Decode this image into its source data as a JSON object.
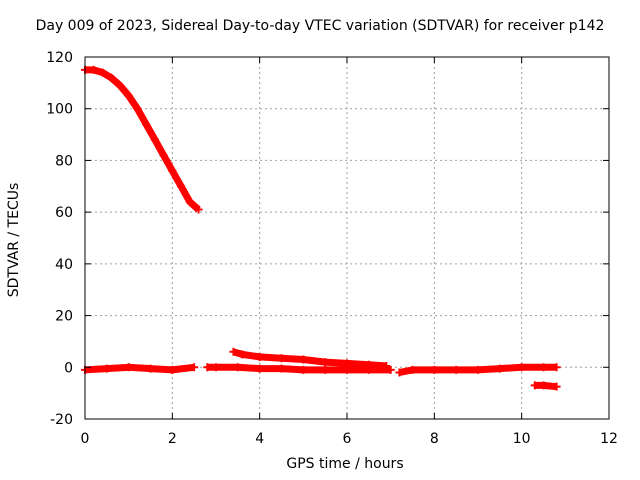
{
  "chart_data": {
    "type": "scatter",
    "title": "Day 009 of 2023, Sidereal Day-to-day VTEC variation (SDTVAR) for receiver p142",
    "xlabel": "GPS time / hours",
    "ylabel": "SDTVAR / TECUs",
    "xlim": [
      0,
      12
    ],
    "ylim": [
      -20,
      120
    ],
    "xticks": [
      0,
      2,
      4,
      6,
      8,
      10,
      12
    ],
    "yticks": [
      -20,
      0,
      20,
      40,
      60,
      80,
      100,
      120
    ],
    "xtick_labels": [
      "0",
      "2",
      "4",
      "6",
      "8",
      "10",
      "12"
    ],
    "ytick_labels": [
      "-20",
      "0",
      "20",
      "40",
      "60",
      "80",
      "100",
      "120"
    ],
    "grid": true,
    "marker_color": "#ff0000",
    "series": [
      {
        "name": "segment-1",
        "x": [
          0.0,
          0.2,
          0.4,
          0.6,
          0.8,
          1.0,
          1.2,
          1.4,
          1.6,
          1.8,
          2.0,
          2.2,
          2.4,
          2.6
        ],
        "y": [
          115,
          115,
          114,
          112,
          109,
          105,
          100,
          94,
          88,
          82,
          76,
          70,
          64,
          61
        ]
      },
      {
        "name": "segment-2",
        "x": [
          0.0,
          0.5,
          1.0,
          1.5,
          2.0,
          2.5
        ],
        "y": [
          -1,
          -0.5,
          0,
          -0.5,
          -1,
          0
        ]
      },
      {
        "name": "segment-3",
        "x": [
          2.8,
          3.0,
          3.5,
          4.0,
          4.5,
          5.0,
          5.5,
          6.0,
          6.5,
          7.0
        ],
        "y": [
          0,
          0,
          0,
          -0.5,
          -0.5,
          -1,
          -1,
          -1,
          -1,
          -1
        ]
      },
      {
        "name": "segment-4",
        "x": [
          3.4,
          3.6,
          4.0,
          4.5,
          5.0,
          5.5,
          6.0,
          6.5,
          6.9
        ],
        "y": [
          6,
          5,
          4,
          3.5,
          3,
          2,
          1.5,
          1,
          0.5
        ]
      },
      {
        "name": "segment-5",
        "x": [
          7.2,
          7.5,
          8.0,
          8.5,
          9.0,
          9.5,
          10.0,
          10.5,
          10.8
        ],
        "y": [
          -2,
          -1,
          -1,
          -1,
          -1,
          -0.5,
          0,
          0,
          0
        ]
      },
      {
        "name": "segment-6",
        "x": [
          10.3,
          10.5,
          10.8
        ],
        "y": [
          -7,
          -7,
          -7.5
        ]
      }
    ]
  }
}
